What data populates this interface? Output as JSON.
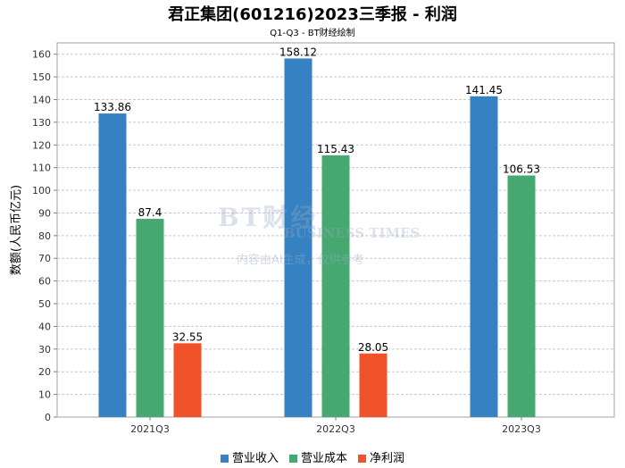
{
  "page": {
    "title": "君正集团(601216)2023三季报 - 利润",
    "subtitle": "Q1-Q3 - BT财经绘制",
    "watermark": {
      "brand": "BT财经",
      "brand_en": "BUSINESS TIMES",
      "note": "内容由AI生成，仅供参考"
    }
  },
  "chart_data": {
    "type": "bar",
    "title": "君正集团(601216)2023三季报 - 利润",
    "subtitle": "Q1-Q3 - BT财经绘制",
    "xlabel": "",
    "ylabel": "数额(人民币亿元)",
    "ylim": [
      0,
      165
    ],
    "yticks": [
      0,
      10,
      20,
      30,
      40,
      50,
      60,
      70,
      80,
      90,
      100,
      110,
      120,
      130,
      140,
      150,
      160
    ],
    "grid": true,
    "legend_position": "bottom",
    "categories": [
      "2021Q3",
      "2022Q3",
      "2023Q3"
    ],
    "series": [
      {
        "name": "营业收入",
        "color": "#3681C1",
        "values": [
          133.86,
          158.12,
          141.45
        ],
        "labels": [
          "133.86",
          "158.12",
          "141.45"
        ]
      },
      {
        "name": "营业成本",
        "color": "#46A871",
        "values": [
          87.4,
          115.43,
          106.53
        ],
        "labels": [
          "87.4",
          "115.43",
          "106.53"
        ]
      },
      {
        "name": "净利润",
        "color": "#F05329",
        "values": [
          32.55,
          28.05,
          null
        ],
        "labels": [
          "32.55",
          "28.05",
          ""
        ]
      }
    ]
  }
}
